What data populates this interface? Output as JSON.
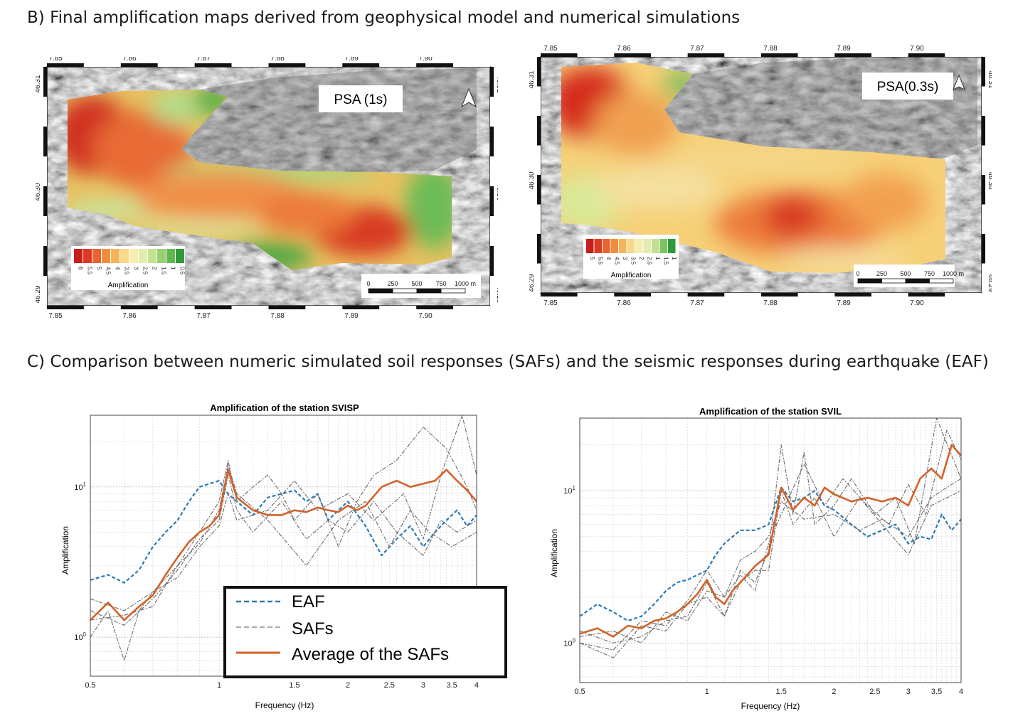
{
  "sections": {
    "b_title": "B) Final amplification maps derived from geophysical model and numerical simulations",
    "c_title": "C) Comparison between numeric simulated soil responses (SAFs) and the seismic responses during earthquake (EAF)"
  },
  "maps": [
    {
      "label": "PSA (1s)",
      "lon_ticks_top": [
        "7.85",
        "7.86",
        "7.87",
        "7.88",
        "7.89",
        "7.90"
      ],
      "lon_ticks_bottom": [
        "7.85",
        "7.86",
        "7.87",
        "7.88",
        "7.89",
        "7.90"
      ],
      "lat_ticks": [
        "46.31",
        "46.30",
        "46.29"
      ],
      "legend_values": [
        "6",
        "5.5",
        "5",
        "4.5",
        "4",
        "3.5",
        "3",
        "2.5",
        "2",
        "1.5",
        "1",
        "0.5"
      ],
      "legend_colors": [
        "#c81e1e",
        "#dc3a22",
        "#e8642f",
        "#f08c3c",
        "#f6b45a",
        "#f8d88a",
        "#f6eeb0",
        "#e2ecb0",
        "#c2e092",
        "#98d070",
        "#62b850",
        "#2e9a3a"
      ],
      "legend_title": "Amplification",
      "scale_labels": [
        "0",
        "250",
        "500",
        "750",
        "1000 m"
      ]
    },
    {
      "label": "PSA(0.3s)",
      "lon_ticks_top": [
        "7.85",
        "7.86",
        "7.87",
        "7.88",
        "7.89",
        "7.90"
      ],
      "lon_ticks_bottom": [
        "7.85",
        "7.86",
        "7.87",
        "7.88",
        "7.89",
        "7.90"
      ],
      "lat_ticks": [
        "46.31",
        "46.30",
        "46.29"
      ],
      "legend_values": [
        "5",
        "5.5",
        "4",
        "4.5",
        "3",
        "3.5",
        "2",
        "2.5",
        "1",
        "1.5",
        "1"
      ],
      "legend_colors": [
        "#c81e1e",
        "#dc3a22",
        "#e8642f",
        "#f08c3c",
        "#f6b45a",
        "#f8d88a",
        "#f6eeb0",
        "#e2ecb0",
        "#c2e092",
        "#7cc460",
        "#2e9a3a"
      ],
      "legend_title": "Amplification",
      "scale_labels": [
        "0",
        "250",
        "500",
        "750",
        "1000 m"
      ]
    }
  ],
  "chart_data": [
    {
      "type": "line",
      "title": "Amplification of the station SVISP",
      "xlabel": "Frequency (Hz)",
      "ylabel": "Amplification",
      "x_scale": "log",
      "y_scale": "log",
      "xlim": [
        0.5,
        4
      ],
      "ylim": [
        0.55,
        30
      ],
      "x_ticks": [
        "0.5",
        "1",
        "1.5",
        "2",
        "2.5",
        "3",
        "3.5",
        "4"
      ],
      "y_ticks": [
        "10^0",
        "10^1"
      ],
      "grid": true,
      "legend": {
        "entries": [
          "EAF",
          "SAFs",
          "Average of the SAFs"
        ],
        "colors": [
          "#2a7ab8",
          "#9a9a9a",
          "#d2622a"
        ]
      },
      "series": [
        {
          "name": "EAF",
          "style": "dashed",
          "color": "#2a7ab8",
          "x": [
            0.5,
            0.55,
            0.6,
            0.65,
            0.7,
            0.75,
            0.8,
            0.85,
            0.9,
            0.95,
            1.0,
            1.05,
            1.1,
            1.2,
            1.3,
            1.4,
            1.5,
            1.6,
            1.7,
            1.8,
            1.9,
            2.0,
            2.2,
            2.4,
            2.6,
            2.8,
            3.0,
            3.2,
            3.4,
            3.6,
            3.8,
            4.0
          ],
          "y": [
            2.4,
            2.6,
            2.3,
            2.8,
            4.0,
            5.0,
            6.0,
            8.0,
            10.0,
            10.5,
            11.0,
            9.0,
            8.0,
            6.5,
            8.5,
            9.0,
            9.5,
            8.0,
            9.0,
            6.0,
            7.0,
            8.0,
            5.5,
            3.5,
            4.5,
            5.5,
            4.0,
            5.0,
            6.0,
            7.0,
            5.5,
            6.5
          ]
        },
        {
          "name": "",
          "style": "dashed",
          "color": "#6a6a6a",
          "x": [
            0.5,
            0.55,
            0.6,
            0.65,
            0.7,
            0.8,
            0.9,
            1.0,
            1.05,
            1.1,
            1.2,
            1.3,
            1.4,
            1.5,
            1.7,
            1.9,
            2.1,
            2.3,
            2.6,
            3.0,
            3.4,
            3.8,
            4.0
          ],
          "y": [
            1.0,
            1.5,
            0.7,
            1.5,
            2.0,
            3.0,
            5.0,
            8.0,
            15.0,
            8.0,
            10.0,
            12.0,
            9.0,
            6.0,
            9.0,
            4.0,
            8.0,
            12.0,
            15.0,
            25.0,
            18.0,
            10.0,
            7.0
          ]
        },
        {
          "name": "",
          "style": "dashed",
          "color": "#6a6a6a",
          "x": [
            0.5,
            0.6,
            0.7,
            0.8,
            0.9,
            1.0,
            1.05,
            1.1,
            1.2,
            1.4,
            1.6,
            1.8,
            2.0,
            2.3,
            2.6,
            3.0,
            3.3,
            3.6,
            4.0
          ],
          "y": [
            1.5,
            1.2,
            1.8,
            2.8,
            4.5,
            6.0,
            12.0,
            7.0,
            5.0,
            8.0,
            4.5,
            6.0,
            5.0,
            8.0,
            5.0,
            3.5,
            6.0,
            5.0,
            6.0
          ]
        },
        {
          "name": "",
          "style": "dashed",
          "color": "#6a6a6a",
          "x": [
            0.5,
            0.6,
            0.7,
            0.8,
            0.9,
            1.0,
            1.05,
            1.1,
            1.3,
            1.5,
            1.7,
            2.0,
            2.3,
            2.7,
            3.0,
            3.3,
            3.7,
            4.0
          ],
          "y": [
            1.8,
            1.5,
            2.0,
            2.5,
            4.0,
            5.5,
            9.0,
            6.0,
            7.0,
            11.0,
            7.0,
            9.0,
            6.0,
            9.0,
            4.5,
            12.0,
            30.0,
            12.0
          ]
        },
        {
          "name": "",
          "style": "dashed",
          "color": "#6a6a6a",
          "x": [
            0.5,
            0.6,
            0.7,
            0.8,
            0.9,
            1.0,
            1.05,
            1.1,
            1.3,
            1.6,
            1.9,
            2.2,
            2.5,
            2.8,
            3.1,
            3.5,
            4.0
          ],
          "y": [
            1.3,
            1.4,
            1.6,
            3.0,
            4.2,
            7.0,
            14.0,
            9.0,
            6.0,
            3.0,
            6.0,
            8.0,
            4.0,
            7.0,
            5.0,
            4.0,
            5.0
          ]
        },
        {
          "name": "Average of the SAFs",
          "style": "solid",
          "color": "#d2622a",
          "x": [
            0.5,
            0.55,
            0.6,
            0.65,
            0.7,
            0.75,
            0.8,
            0.85,
            0.9,
            0.95,
            1.0,
            1.05,
            1.1,
            1.2,
            1.3,
            1.4,
            1.5,
            1.6,
            1.7,
            1.8,
            1.9,
            2.0,
            2.1,
            2.2,
            2.4,
            2.6,
            2.8,
            3.0,
            3.2,
            3.4,
            3.6,
            3.8,
            4.0
          ],
          "y": [
            1.3,
            1.7,
            1.3,
            1.6,
            1.9,
            2.6,
            3.4,
            4.3,
            5.0,
            5.5,
            6.5,
            13.0,
            8.5,
            7.0,
            6.5,
            6.5,
            7.0,
            6.8,
            7.3,
            7.0,
            6.8,
            7.5,
            7.0,
            7.5,
            10.0,
            11.0,
            10.0,
            10.5,
            11.0,
            13.0,
            11.0,
            9.5,
            8.0
          ]
        }
      ]
    },
    {
      "type": "line",
      "title": "Amplification of the station SVIL",
      "xlabel": "Frequency (Hz)",
      "ylabel": "Amplification",
      "x_scale": "log",
      "y_scale": "log",
      "xlim": [
        0.5,
        4
      ],
      "ylim": [
        0.55,
        30
      ],
      "x_ticks": [
        "0.5",
        "1",
        "1.5",
        "2",
        "2.5",
        "3",
        "3.5",
        "4"
      ],
      "y_ticks": [
        "10^0",
        "10^1"
      ],
      "grid": true,
      "series": [
        {
          "name": "EAF",
          "style": "dashed",
          "color": "#2a7ab8",
          "x": [
            0.5,
            0.55,
            0.6,
            0.65,
            0.7,
            0.75,
            0.8,
            0.85,
            0.9,
            0.95,
            1.0,
            1.05,
            1.1,
            1.2,
            1.3,
            1.4,
            1.5,
            1.6,
            1.7,
            1.8,
            1.9,
            2.0,
            2.2,
            2.4,
            2.6,
            2.8,
            3.0,
            3.2,
            3.4,
            3.6,
            3.8,
            4.0
          ],
          "y": [
            1.5,
            1.8,
            1.6,
            1.4,
            1.5,
            1.8,
            2.2,
            2.5,
            2.6,
            2.8,
            3.0,
            3.8,
            4.5,
            5.5,
            5.5,
            6.0,
            10.5,
            8.5,
            9.0,
            10.0,
            8.0,
            7.5,
            6.0,
            5.0,
            5.5,
            6.0,
            4.5,
            5.0,
            4.8,
            7.0,
            5.5,
            6.5
          ]
        },
        {
          "name": "",
          "style": "dashed",
          "color": "#6a6a6a",
          "x": [
            0.5,
            0.6,
            0.7,
            0.8,
            0.9,
            1.0,
            1.1,
            1.2,
            1.3,
            1.4,
            1.5,
            1.6,
            1.7,
            1.8,
            2.0,
            2.2,
            2.5,
            2.8,
            3.1,
            3.5,
            4.0
          ],
          "y": [
            1.0,
            0.8,
            1.3,
            1.2,
            1.8,
            2.0,
            1.5,
            3.0,
            2.5,
            4.0,
            20.0,
            7.0,
            18.0,
            6.0,
            8.0,
            12.0,
            7.0,
            9.0,
            4.5,
            30.0,
            12.0
          ]
        },
        {
          "name": "",
          "style": "dashed",
          "color": "#6a6a6a",
          "x": [
            0.5,
            0.6,
            0.7,
            0.8,
            0.9,
            1.0,
            1.1,
            1.2,
            1.3,
            1.4,
            1.5,
            1.6,
            1.8,
            2.0,
            2.3,
            2.6,
            3.0,
            3.4,
            4.0
          ],
          "y": [
            1.2,
            1.0,
            1.1,
            1.4,
            1.5,
            2.5,
            1.5,
            2.5,
            3.0,
            3.0,
            10.0,
            6.0,
            9.0,
            5.0,
            9.0,
            6.0,
            3.8,
            8.0,
            10.0
          ]
        },
        {
          "name": "",
          "style": "dashed",
          "color": "#6a6a6a",
          "x": [
            0.5,
            0.6,
            0.7,
            0.8,
            0.9,
            1.0,
            1.1,
            1.2,
            1.3,
            1.4,
            1.5,
            1.7,
            1.9,
            2.1,
            2.4,
            2.7,
            3.0,
            3.3,
            3.7,
            4.0
          ],
          "y": [
            1.1,
            1.2,
            1.0,
            1.6,
            1.4,
            2.2,
            2.0,
            2.8,
            2.2,
            4.5,
            7.0,
            15.0,
            8.0,
            12.0,
            8.0,
            6.0,
            11.0,
            7.0,
            25.0,
            16.0
          ]
        },
        {
          "name": "",
          "style": "dashed",
          "color": "#6a6a6a",
          "x": [
            0.5,
            0.6,
            0.7,
            0.8,
            0.9,
            1.0,
            1.1,
            1.2,
            1.3,
            1.4,
            1.5,
            1.7,
            2.0,
            2.3,
            2.6,
            3.0,
            3.4,
            3.8,
            4.0
          ],
          "y": [
            1.0,
            0.9,
            1.4,
            1.3,
            1.9,
            3.0,
            2.0,
            3.5,
            4.0,
            5.0,
            8.5,
            6.5,
            7.0,
            5.5,
            6.5,
            5.0,
            9.0,
            11.0,
            12.0
          ]
        },
        {
          "name": "",
          "style": "solid",
          "color": "#d2622a",
          "x": [
            0.5,
            0.55,
            0.6,
            0.65,
            0.7,
            0.75,
            0.8,
            0.85,
            0.9,
            0.95,
            1.0,
            1.05,
            1.1,
            1.15,
            1.2,
            1.3,
            1.4,
            1.5,
            1.6,
            1.7,
            1.8,
            1.9,
            2.0,
            2.2,
            2.4,
            2.6,
            2.8,
            3.0,
            3.2,
            3.4,
            3.6,
            3.8,
            4.0
          ],
          "y": [
            1.15,
            1.25,
            1.1,
            1.3,
            1.25,
            1.4,
            1.45,
            1.6,
            1.8,
            2.1,
            2.6,
            2.0,
            1.8,
            2.2,
            2.5,
            3.2,
            3.8,
            10.5,
            7.5,
            9.0,
            8.0,
            10.5,
            9.5,
            8.5,
            9.0,
            8.5,
            9.0,
            8.0,
            12.0,
            14.0,
            12.0,
            20.0,
            17.0
          ]
        }
      ]
    }
  ]
}
